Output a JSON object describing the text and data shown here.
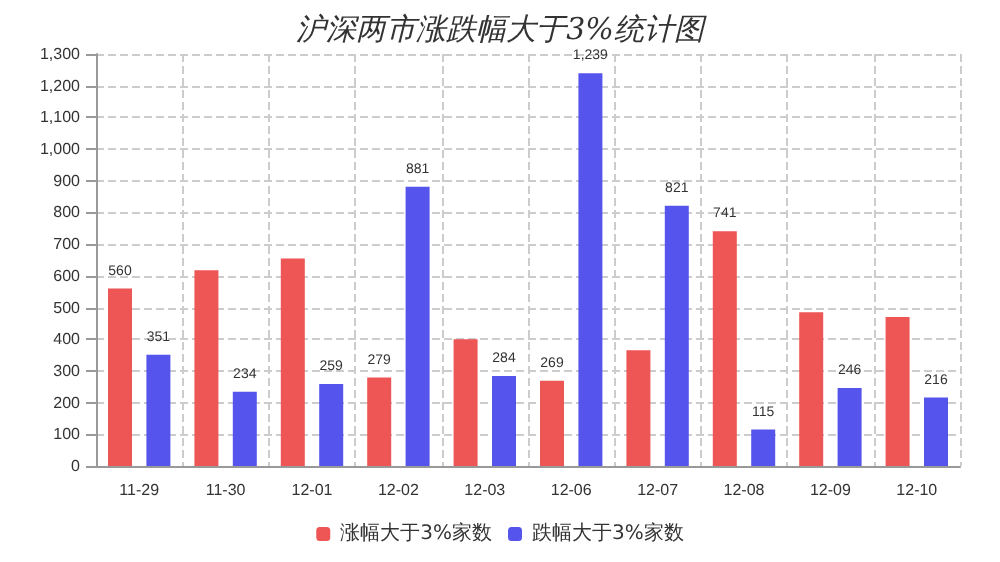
{
  "chart_data": {
    "type": "bar",
    "title": "沪深两市涨跌幅大于3%统计图",
    "categories": [
      "11-29",
      "11-30",
      "12-01",
      "12-02",
      "12-03",
      "12-06",
      "12-07",
      "12-08",
      "12-09",
      "12-10"
    ],
    "series": [
      {
        "name": "涨幅大于3%家数",
        "color": "#ee5555",
        "values": [
          560,
          618,
          655,
          279,
          400,
          269,
          365,
          741,
          485,
          470
        ],
        "value_labels": [
          "560",
          null,
          null,
          "279",
          null,
          "269",
          null,
          "741",
          null,
          null
        ]
      },
      {
        "name": "跌幅大于3%家数",
        "color": "#5555ee",
        "values": [
          351,
          234,
          259,
          881,
          284,
          1239,
          821,
          115,
          246,
          216
        ],
        "value_labels": [
          "351",
          "234",
          "259",
          "881",
          "284",
          "1,239",
          "821",
          "115",
          "246",
          "216"
        ]
      }
    ],
    "ylim": [
      0,
      1300
    ],
    "yticks": [
      0,
      100,
      200,
      300,
      400,
      500,
      600,
      700,
      800,
      900,
      {
        "value": 1000,
        "label": "1,000"
      },
      {
        "value": 1100,
        "label": "1,100"
      },
      {
        "value": 1200,
        "label": "1,200"
      },
      {
        "value": 1300,
        "label": "1,300"
      }
    ],
    "grid": true,
    "legend": "bottom"
  }
}
